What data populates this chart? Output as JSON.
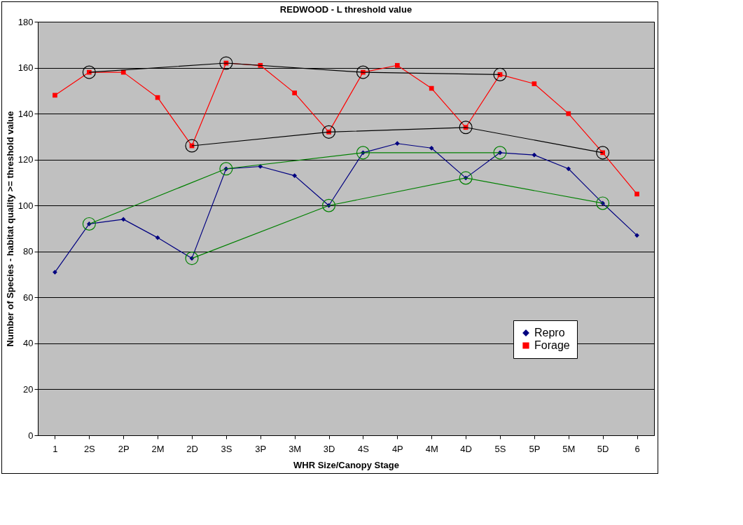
{
  "chart_data": {
    "type": "line",
    "title": "REDWOOD - L threshold value",
    "xlabel": "WHR Size/Canopy Stage",
    "ylabel": "Number of Species - habitat quality >= threshold value",
    "categories": [
      "1",
      "2S",
      "2P",
      "2M",
      "2D",
      "3S",
      "3P",
      "3M",
      "3D",
      "4S",
      "4P",
      "4M",
      "4D",
      "5S",
      "5P",
      "5M",
      "5D",
      "6"
    ],
    "series": [
      {
        "name": "Repro",
        "color": "#000080",
        "marker": "diamond",
        "values": [
          71,
          92,
          94,
          86,
          77,
          116,
          117,
          113,
          100,
          123,
          127,
          125,
          112,
          123,
          122,
          116,
          101,
          87
        ]
      },
      {
        "name": "Forage",
        "color": "#ff0000",
        "marker": "square",
        "values": [
          148,
          158,
          158,
          147,
          126,
          162,
          161,
          149,
          132,
          158,
          161,
          151,
          134,
          157,
          153,
          140,
          123,
          105
        ]
      },
      {
        "color": "#000000",
        "marker": "circle",
        "x": [
          "2S",
          "3S",
          "4S",
          "5S"
        ],
        "values": [
          158,
          162,
          158,
          157
        ]
      },
      {
        "color": "#000000",
        "marker": "circle",
        "x": [
          "2D",
          "3D",
          "4D",
          "5D"
        ],
        "values": [
          126,
          132,
          134,
          123
        ]
      },
      {
        "color": "#008000",
        "marker": "circle",
        "x": [
          "2S",
          "3S",
          "4S",
          "5S"
        ],
        "values": [
          92,
          116,
          123,
          123
        ]
      },
      {
        "color": "#008000",
        "marker": "circle",
        "x": [
          "2D",
          "3D",
          "4D",
          "5D"
        ],
        "values": [
          77,
          100,
          112,
          101
        ]
      }
    ],
    "ylim": [
      0,
      180
    ],
    "yticks": [
      0,
      20,
      40,
      60,
      80,
      100,
      120,
      140,
      160,
      180
    ],
    "grid": "y",
    "legend": "bottom right"
  }
}
